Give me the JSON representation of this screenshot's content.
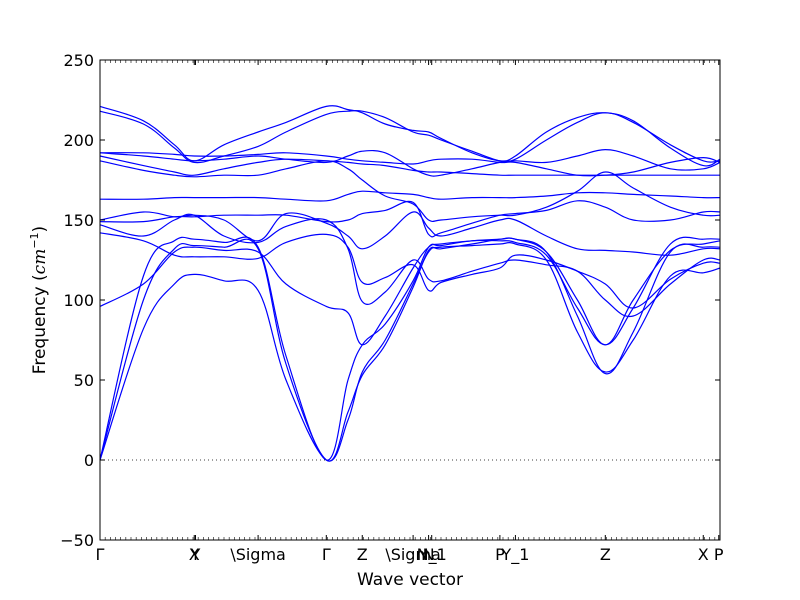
{
  "chart_data": {
    "type": "line",
    "title": "",
    "xlabel": "Wave vector",
    "ylabel": {
      "prefix": "Frequency (",
      "unit_base": "cm",
      "unit_exp": "−1",
      "suffix": ")"
    },
    "ylim": [
      -50,
      250
    ],
    "yticks": [
      -50,
      0,
      50,
      100,
      150,
      200,
      250
    ],
    "ytick_labels": [
      "−50",
      "0",
      "50",
      "100",
      "150",
      "200",
      "250"
    ],
    "xlim": [
      0,
      1
    ],
    "xticks": [
      {
        "label": "Γ",
        "x": 0.0
      },
      {
        "label": "X",
        "x": 0.152
      },
      {
        "label": "Y",
        "x": 0.154
      },
      {
        "label": "\\Sigma",
        "x": 0.255
      },
      {
        "label": "Γ",
        "x": 0.365
      },
      {
        "label": "Z",
        "x": 0.423
      },
      {
        "label": "\\Sigma",
        "x": 0.505
      },
      {
        "label": "N",
        "x": 0.53
      },
      {
        "label": "N_1",
        "x": 0.535
      },
      {
        "label": "P",
        "x": 0.645
      },
      {
        "label": "Y_1",
        "x": 0.67
      },
      {
        "label": "Z",
        "x": 0.815
      },
      {
        "label": "X",
        "x": 0.973
      },
      {
        "label": "P",
        "x": 0.998
      }
    ],
    "zero_line": {
      "y": 0,
      "style": "dotted"
    },
    "line_color": "#0000ff",
    "series": [
      {
        "x": [
          0,
          0.07,
          0.12,
          0.152,
          0.2,
          0.255,
          0.3,
          0.365,
          0.4,
          0.423,
          0.46,
          0.505,
          0.53,
          0.55,
          0.6,
          0.645,
          0.67,
          0.72,
          0.77,
          0.815,
          0.86,
          0.92,
          0.973,
          1.0
        ],
        "values": [
          0,
          82,
          110,
          116,
          112,
          106,
          50,
          0,
          25,
          55,
          75,
          110,
          130,
          133,
          134,
          135,
          135,
          125,
          80,
          55,
          75,
          115,
          117,
          120
        ]
      },
      {
        "x": [
          0,
          0.07,
          0.12,
          0.152,
          0.2,
          0.255,
          0.3,
          0.365,
          0.4,
          0.423,
          0.46,
          0.505,
          0.53,
          0.55,
          0.6,
          0.645,
          0.67,
          0.72,
          0.77,
          0.815,
          0.86,
          0.92,
          0.973,
          1.0
        ],
        "values": [
          0,
          100,
          132,
          134,
          133,
          132,
          60,
          0,
          30,
          53,
          72,
          108,
          131,
          132,
          135,
          138,
          138,
          130,
          90,
          54,
          80,
          130,
          133,
          133
        ]
      },
      {
        "x": [
          0,
          0.07,
          0.12,
          0.152,
          0.2,
          0.255,
          0.3,
          0.365,
          0.4,
          0.423,
          0.46,
          0.505,
          0.53,
          0.55,
          0.6,
          0.645,
          0.67,
          0.72,
          0.77,
          0.815,
          0.86,
          0.92,
          0.973,
          1.0
        ],
        "values": [
          0,
          115,
          137,
          138,
          136,
          133,
          65,
          0,
          50,
          72,
          85,
          112,
          133,
          134,
          137,
          137,
          136,
          128,
          95,
          72,
          95,
          135,
          138,
          138
        ]
      },
      {
        "x": [
          0,
          0.07,
          0.12,
          0.152,
          0.2,
          0.255,
          0.3,
          0.365,
          0.4,
          0.423,
          0.46,
          0.505,
          0.53,
          0.55,
          0.6,
          0.645,
          0.67,
          0.72,
          0.77,
          0.815,
          0.86,
          0.92,
          0.973,
          1.0
        ],
        "values": [
          96,
          110,
          130,
          133,
          131,
          130,
          110,
          96,
          92,
          72,
          90,
          120,
          133,
          135,
          137,
          138,
          138,
          130,
          100,
          72,
          100,
          131,
          135,
          137
        ]
      },
      {
        "x": [
          0,
          0.07,
          0.12,
          0.152,
          0.2,
          0.255,
          0.3,
          0.365,
          0.4,
          0.423,
          0.46,
          0.505,
          0.53,
          0.55,
          0.6,
          0.645,
          0.67,
          0.72,
          0.77,
          0.815,
          0.86,
          0.92,
          0.973,
          1.0
        ],
        "values": [
          142,
          137,
          128,
          127,
          127,
          126,
          136,
          141,
          133,
          111,
          114,
          122,
          106,
          111,
          116,
          120,
          128,
          125,
          118,
          110,
          95,
          113,
          123,
          123
        ]
      },
      {
        "x": [
          0,
          0.07,
          0.12,
          0.152,
          0.2,
          0.255,
          0.3,
          0.365,
          0.4,
          0.423,
          0.46,
          0.505,
          0.53,
          0.55,
          0.6,
          0.645,
          0.67,
          0.72,
          0.77,
          0.815,
          0.86,
          0.92,
          0.973,
          1.0
        ],
        "values": [
          147,
          140,
          150,
          153,
          140,
          136,
          146,
          150,
          132,
          99,
          105,
          125,
          113,
          112,
          118,
          123,
          125,
          122,
          118,
          100,
          90,
          110,
          125,
          125
        ]
      },
      {
        "x": [
          0,
          0.07,
          0.12,
          0.152,
          0.2,
          0.255,
          0.3,
          0.365,
          0.4,
          0.423,
          0.46,
          0.505,
          0.53,
          0.55,
          0.6,
          0.645,
          0.67,
          0.72,
          0.77,
          0.815,
          0.86,
          0.92,
          0.973,
          1.0
        ],
        "values": [
          150,
          155,
          152,
          153,
          150,
          137,
          154,
          148,
          140,
          132,
          140,
          155,
          145,
          140,
          145,
          150,
          150,
          140,
          132,
          131,
          130,
          128,
          132,
          132
        ]
      },
      {
        "x": [
          0,
          0.07,
          0.12,
          0.152,
          0.2,
          0.255,
          0.3,
          0.365,
          0.4,
          0.423,
          0.46,
          0.505,
          0.53,
          0.55,
          0.6,
          0.645,
          0.67,
          0.72,
          0.77,
          0.815,
          0.86,
          0.92,
          0.973,
          1.0
        ],
        "values": [
          149,
          149,
          152,
          152,
          153,
          153,
          153,
          149,
          150,
          154,
          156,
          161,
          141,
          142,
          148,
          153,
          154,
          156,
          162,
          158,
          150,
          150,
          155,
          155
        ]
      },
      {
        "x": [
          0,
          0.07,
          0.12,
          0.152,
          0.2,
          0.255,
          0.3,
          0.365,
          0.4,
          0.423,
          0.46,
          0.505,
          0.53,
          0.55,
          0.6,
          0.645,
          0.67,
          0.72,
          0.77,
          0.815,
          0.86,
          0.92,
          0.973,
          1.0
        ],
        "values": [
          163,
          163,
          164,
          164,
          164,
          164,
          163,
          162,
          166,
          168,
          167,
          166,
          164,
          163,
          164,
          164,
          164,
          165,
          167,
          167,
          166,
          165,
          164,
          164
        ]
      },
      {
        "x": [
          0,
          0.07,
          0.12,
          0.152,
          0.2,
          0.255,
          0.3,
          0.365,
          0.4,
          0.423,
          0.46,
          0.505,
          0.53,
          0.55,
          0.6,
          0.645,
          0.67,
          0.72,
          0.77,
          0.815,
          0.86,
          0.92,
          0.973,
          1.0
        ],
        "values": [
          187,
          181,
          178,
          177,
          178,
          178,
          182,
          187,
          182,
          175,
          165,
          160,
          150,
          150,
          152,
          153,
          153,
          158,
          168,
          180,
          170,
          158,
          153,
          153
        ]
      },
      {
        "x": [
          0,
          0.07,
          0.12,
          0.152,
          0.2,
          0.255,
          0.3,
          0.365,
          0.4,
          0.423,
          0.46,
          0.505,
          0.53,
          0.55,
          0.6,
          0.645,
          0.67,
          0.72,
          0.77,
          0.815,
          0.86,
          0.92,
          0.973,
          1.0
        ],
        "values": [
          190,
          184,
          180,
          178,
          182,
          186,
          188,
          187,
          186,
          185,
          184,
          181,
          180,
          180,
          179,
          178,
          178,
          178,
          178,
          178,
          178,
          178,
          178,
          178
        ]
      },
      {
        "x": [
          0,
          0.07,
          0.12,
          0.152,
          0.2,
          0.255,
          0.3,
          0.365,
          0.4,
          0.423,
          0.46,
          0.505,
          0.53,
          0.55,
          0.6,
          0.645,
          0.67,
          0.72,
          0.77,
          0.815,
          0.86,
          0.92,
          0.973,
          1.0
        ],
        "values": [
          192,
          192,
          191,
          190,
          190,
          191,
          192,
          190,
          188,
          187,
          186,
          185,
          187,
          188,
          188,
          186,
          186,
          182,
          178,
          178,
          180,
          186,
          189,
          186
        ]
      },
      {
        "x": [
          0,
          0.07,
          0.12,
          0.152,
          0.2,
          0.255,
          0.3,
          0.365,
          0.4,
          0.423,
          0.46,
          0.505,
          0.53,
          0.55,
          0.6,
          0.645,
          0.67,
          0.72,
          0.77,
          0.815,
          0.86,
          0.92,
          0.973,
          1.0
        ],
        "values": [
          192,
          190,
          188,
          187,
          188,
          190,
          188,
          186,
          190,
          193,
          192,
          182,
          178,
          178,
          182,
          186,
          187,
          186,
          190,
          194,
          190,
          182,
          182,
          186
        ]
      },
      {
        "x": [
          0,
          0.07,
          0.12,
          0.152,
          0.2,
          0.255,
          0.3,
          0.365,
          0.4,
          0.423,
          0.46,
          0.505,
          0.53,
          0.55,
          0.6,
          0.645,
          0.67,
          0.72,
          0.77,
          0.815,
          0.86,
          0.92,
          0.973,
          1.0
        ],
        "values": [
          218,
          210,
          195,
          186,
          190,
          196,
          205,
          216,
          218,
          218,
          214,
          205,
          203,
          200,
          193,
          187,
          188,
          200,
          211,
          217,
          211,
          197,
          187,
          187
        ]
      },
      {
        "x": [
          0,
          0.07,
          0.12,
          0.152,
          0.2,
          0.255,
          0.3,
          0.365,
          0.4,
          0.423,
          0.46,
          0.505,
          0.53,
          0.55,
          0.6,
          0.645,
          0.67,
          0.72,
          0.77,
          0.815,
          0.86,
          0.92,
          0.973,
          1.0
        ],
        "values": [
          221,
          212,
          197,
          187,
          197,
          205,
          211,
          221,
          219,
          217,
          210,
          206,
          205,
          201,
          192,
          187,
          190,
          205,
          214,
          217,
          212,
          195,
          184,
          188
        ]
      }
    ]
  }
}
